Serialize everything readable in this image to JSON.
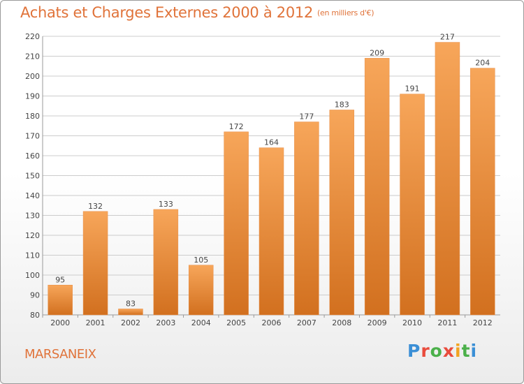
{
  "header": {
    "title": "Achats et Charges Externes 2000 à 2012",
    "subtitle": "(en milliers d'€)"
  },
  "place_label": "MARSANEIX",
  "logo": {
    "text": "Proxiti",
    "colors": [
      "#3b8fd6",
      "#e94b3c",
      "#4bb04a",
      "#f2a321"
    ]
  },
  "colors": {
    "bar_light": "#f7a65a",
    "bar_dark": "#d2701f",
    "accent": "#e0733a",
    "grid": "#cccccc"
  },
  "chart_data": {
    "type": "bar",
    "title": "Achats et Charges Externes 2000 à 2012",
    "subtitle": "(en milliers d'€)",
    "categories": [
      "2000",
      "2001",
      "2002",
      "2003",
      "2004",
      "2005",
      "2006",
      "2007",
      "2008",
      "2009",
      "2010",
      "2011",
      "2012"
    ],
    "values": [
      95,
      132,
      83,
      133,
      105,
      172,
      164,
      177,
      183,
      209,
      191,
      217,
      204
    ],
    "ylim": [
      80,
      220
    ],
    "yticks": [
      80,
      90,
      100,
      110,
      120,
      130,
      140,
      150,
      160,
      170,
      180,
      190,
      200,
      210,
      220
    ],
    "grid": true,
    "data_labels": true
  }
}
